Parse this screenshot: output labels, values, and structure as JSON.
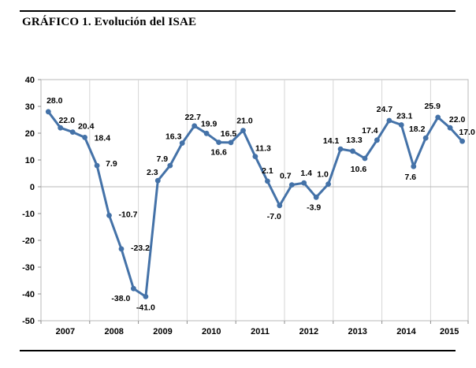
{
  "page": {
    "title": "GRÁFICO 1. Evolución del ISAE"
  },
  "chart_data": {
    "type": "line",
    "title": "GRÁFICO 1. Evolución del ISAE",
    "xlabel": "",
    "ylabel": "",
    "categories": [
      "2007",
      "2008",
      "2009",
      "2010",
      "2011",
      "2012",
      "2013",
      "2014",
      "2015"
    ],
    "points_per_year": [
      4,
      4,
      4,
      4,
      4,
      4,
      4,
      4,
      3
    ],
    "series": [
      {
        "name": "ISAE",
        "values": [
          28.0,
          22.0,
          20.4,
          18.4,
          7.9,
          -10.7,
          -23.2,
          -38.0,
          -41.0,
          2.3,
          7.9,
          16.3,
          22.7,
          19.9,
          16.6,
          16.5,
          21.0,
          11.3,
          2.1,
          -7.0,
          0.7,
          1.4,
          -3.9,
          1.0,
          14.1,
          13.3,
          10.6,
          17.4,
          24.7,
          23.1,
          7.6,
          18.2,
          25.9,
          22.0,
          17.0
        ]
      }
    ],
    "data_labels": [
      "28.0",
      "22.0",
      "20.4",
      "18.4",
      "7.9",
      "-10.7",
      "-23.2",
      "-38.0",
      "-41.0",
      "2.3",
      "7.9",
      "16.3",
      "22.7",
      "19.9",
      "16.6",
      "16.5",
      "21.0",
      "11.3",
      "2.1",
      "-7.0",
      "0.7",
      "1.4",
      "-3.9",
      "1.0",
      "14.1",
      "13.3",
      "10.6",
      "17.4",
      "24.7",
      "23.1",
      "7.6",
      "18.2",
      "25.9",
      "22.0",
      "17.0"
    ],
    "last_label_color": "#ff0000",
    "ylim": [
      -50,
      40
    ],
    "ytick_step": 10,
    "yticks": [
      40,
      30,
      20,
      10,
      0,
      -10,
      -20,
      -30,
      -40,
      -50
    ],
    "legend": "none",
    "grid": {
      "vertical_year_boundaries": true,
      "horizontal_zero_line": true,
      "plot_border": true
    },
    "line_color": "#4472a8",
    "marker": "circle",
    "marker_color": "#4472a8",
    "label_color": "#000000",
    "gridline_color": "#d6d6d6",
    "axis_line_color": "#b8b8b8",
    "tick_mark_color": "#8c8c8c"
  }
}
